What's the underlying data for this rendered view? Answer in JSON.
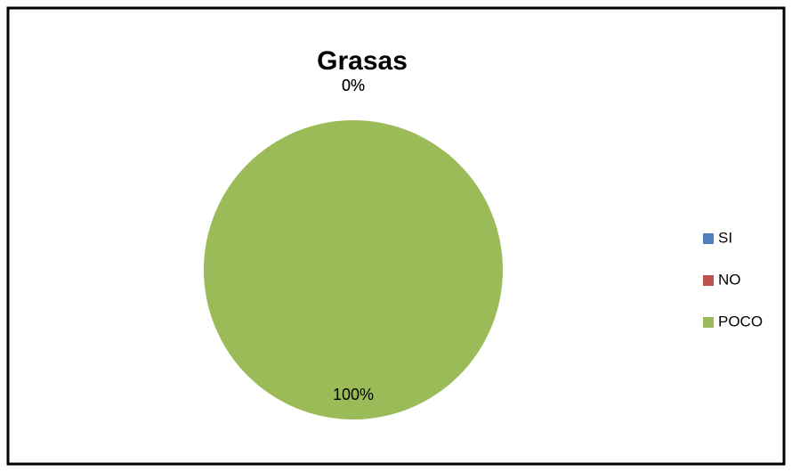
{
  "chart_data": {
    "type": "pie",
    "title": "Grasas",
    "categories": [
      "SI",
      "NO",
      "POCO"
    ],
    "values": [
      0,
      0,
      100
    ],
    "value_labels": [
      "0%",
      "0%",
      "100%"
    ],
    "colors": [
      "#4f81bd",
      "#c0504d",
      "#9bbb59"
    ],
    "legend": "right"
  }
}
